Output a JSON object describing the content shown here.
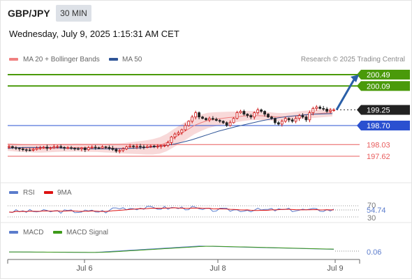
{
  "header": {
    "symbol": "GBP/JPY",
    "timeframe": "30 MIN",
    "datetime": "Wednesday, July 9, 2025 1:15:31 AM CET",
    "credit": "Research © 2025 Trading Central"
  },
  "legends": {
    "main": [
      {
        "label": "MA 20 + Bollinger Bands",
        "color": "#f08080"
      },
      {
        "label": "MA 50",
        "color": "#2f5597"
      }
    ],
    "rsi": [
      {
        "label": "RSI",
        "color": "#5b7ccc"
      },
      {
        "label": "9MA",
        "color": "#dd1111"
      }
    ],
    "macd": [
      {
        "label": "MACD",
        "color": "#5b7ccc"
      },
      {
        "label": "MACD Signal",
        "color": "#3d9a1a"
      }
    ]
  },
  "colors": {
    "up": "#cc1111",
    "down": "#222222",
    "target": "#4a9a0a",
    "pivot": "#2a50d0",
    "support": "#e85c5c",
    "arrow": "#2a5fa8",
    "band": "#f5c9c9"
  },
  "chart_data": [
    {
      "type": "candlestick",
      "x_ticks": [
        "Jul 6",
        "Jul 8",
        "Jul 9"
      ],
      "ylim": [
        197.0,
        200.7
      ],
      "levels": [
        {
          "value": 200.49,
          "label": "200.49",
          "role": "target"
        },
        {
          "value": 200.09,
          "label": "200.09",
          "role": "target"
        },
        {
          "value": 199.25,
          "label": "199.25",
          "role": "last"
        },
        {
          "value": 198.7,
          "label": "198.70",
          "role": "pivot"
        },
        {
          "value": 198.03,
          "label": "198.03",
          "role": "support"
        },
        {
          "value": 197.62,
          "label": "197.62",
          "role": "support"
        }
      ],
      "close_path": [
        197.96,
        197.92,
        197.9,
        197.88,
        197.85,
        197.84,
        197.83,
        197.86,
        197.9,
        197.92,
        197.94,
        197.9,
        197.92,
        197.95,
        197.96,
        197.93,
        197.91,
        197.92,
        197.9,
        197.89,
        197.88,
        197.91,
        197.85,
        197.92,
        197.94,
        197.92,
        197.91,
        197.95,
        197.93,
        197.9,
        197.86,
        197.8,
        197.82,
        197.88,
        197.95,
        197.98,
        197.96,
        197.97,
        197.95,
        197.93,
        197.96,
        197.98,
        197.96,
        197.97,
        197.99,
        198.0,
        198.1,
        198.3,
        198.4,
        198.45,
        198.55,
        198.7,
        198.85,
        199.0,
        199.15,
        199.0,
        198.95,
        198.9,
        198.95,
        198.92,
        198.88,
        198.85,
        198.8,
        198.7,
        198.8,
        198.95,
        199.15,
        199.2,
        199.1,
        199.05,
        199.0,
        199.15,
        199.25,
        199.2,
        199.1,
        199.0,
        198.95,
        198.8,
        198.75,
        198.85,
        198.95,
        198.9,
        198.85,
        198.95,
        199.05,
        199.0,
        198.9,
        199.15,
        199.3,
        199.35,
        199.3,
        199.28,
        199.2,
        199.24,
        199.25
      ],
      "ma20": [
        197.95,
        197.93,
        197.91,
        197.9,
        197.89,
        197.89,
        197.9,
        197.91,
        197.92,
        197.92,
        197.93,
        197.92,
        197.92,
        197.92,
        197.91,
        197.91,
        197.9,
        197.9,
        197.91,
        197.92,
        197.93,
        197.95,
        198.0,
        198.1,
        198.25,
        198.4,
        198.55,
        198.7,
        198.8,
        198.88,
        198.92,
        198.95,
        198.98,
        199.0,
        199.03,
        199.05,
        199.05,
        199.04,
        199.02,
        199.0,
        199.0,
        199.02,
        199.05,
        199.08,
        199.1,
        199.12,
        199.14,
        199.16
      ],
      "ma50": [
        197.9,
        197.92,
        197.93,
        197.93,
        197.93,
        197.92,
        197.91,
        197.9,
        197.89,
        197.89,
        197.88,
        197.88,
        197.88,
        197.89,
        197.9,
        197.91,
        197.93,
        197.96,
        198.0,
        198.05,
        198.12,
        198.2,
        198.3,
        198.4,
        198.5,
        198.58,
        198.66,
        198.73,
        198.8,
        198.87,
        198.93,
        198.98,
        199.02,
        199.05,
        199.08,
        199.1,
        199.11,
        199.12
      ]
    },
    {
      "type": "line",
      "name_panel": "RSI",
      "ticks": [
        "70",
        "30"
      ],
      "last_value": "54.74"
    },
    {
      "type": "line",
      "name_panel": "MACD",
      "last_value": "0.06"
    }
  ]
}
